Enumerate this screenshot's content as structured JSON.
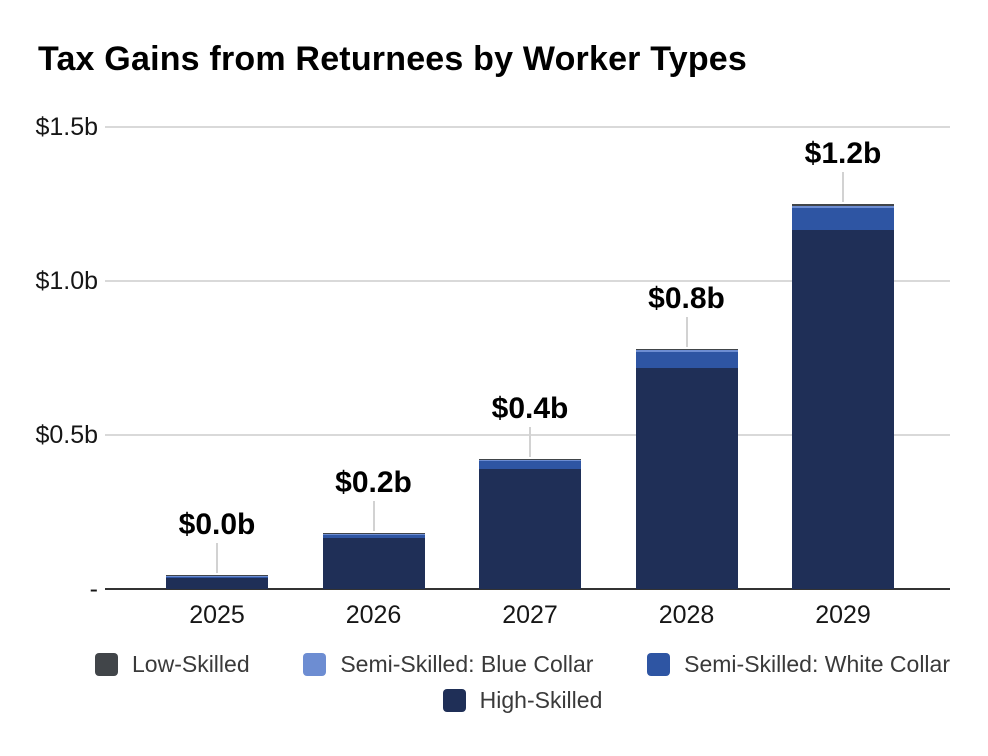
{
  "chart_data": {
    "type": "bar",
    "stacked": true,
    "title": "Tax Gains from Returnees by Worker Types",
    "categories": [
      "2025",
      "2026",
      "2027",
      "2028",
      "2029"
    ],
    "series": [
      {
        "name": "Low-Skilled",
        "color": "#414549",
        "values": [
          0.001,
          0.002,
          0.003,
          0.004,
          0.005
        ]
      },
      {
        "name": "Semi-Skilled: Blue Collar",
        "color": "#6d8dd2",
        "values": [
          0.001,
          0.002,
          0.003,
          0.004,
          0.006
        ]
      },
      {
        "name": "Semi-Skilled: White Collar",
        "color": "#2e55a3",
        "values": [
          0.003,
          0.01,
          0.026,
          0.052,
          0.071
        ]
      },
      {
        "name": "High-Skilled",
        "color": "#1f2f57",
        "values": [
          0.035,
          0.166,
          0.388,
          0.719,
          1.167
        ]
      }
    ],
    "totals": [
      0.04,
      0.18,
      0.42,
      0.78,
      1.25
    ],
    "total_labels": [
      "$0.0b",
      "$0.2b",
      "$0.4b",
      "$0.8b",
      "$1.2b"
    ],
    "xlabel": "",
    "ylabel": "",
    "y_axis": {
      "range": [
        0,
        1.5
      ],
      "ticks": [
        {
          "value": 1.5,
          "label": "$1.5b"
        },
        {
          "value": 1.0,
          "label": "$1.0b"
        },
        {
          "value": 0.5,
          "label": "$0.5b"
        },
        {
          "value": 0.0,
          "label": "-"
        }
      ]
    },
    "grid": true,
    "legend_position": "bottom",
    "colors": {
      "grid": "#d9d9d9",
      "axis": "#333333",
      "leader": "#d2d2d2",
      "tick_text": "#161616",
      "legend_text": "#3a3a3a",
      "background": "#ffffff"
    }
  }
}
